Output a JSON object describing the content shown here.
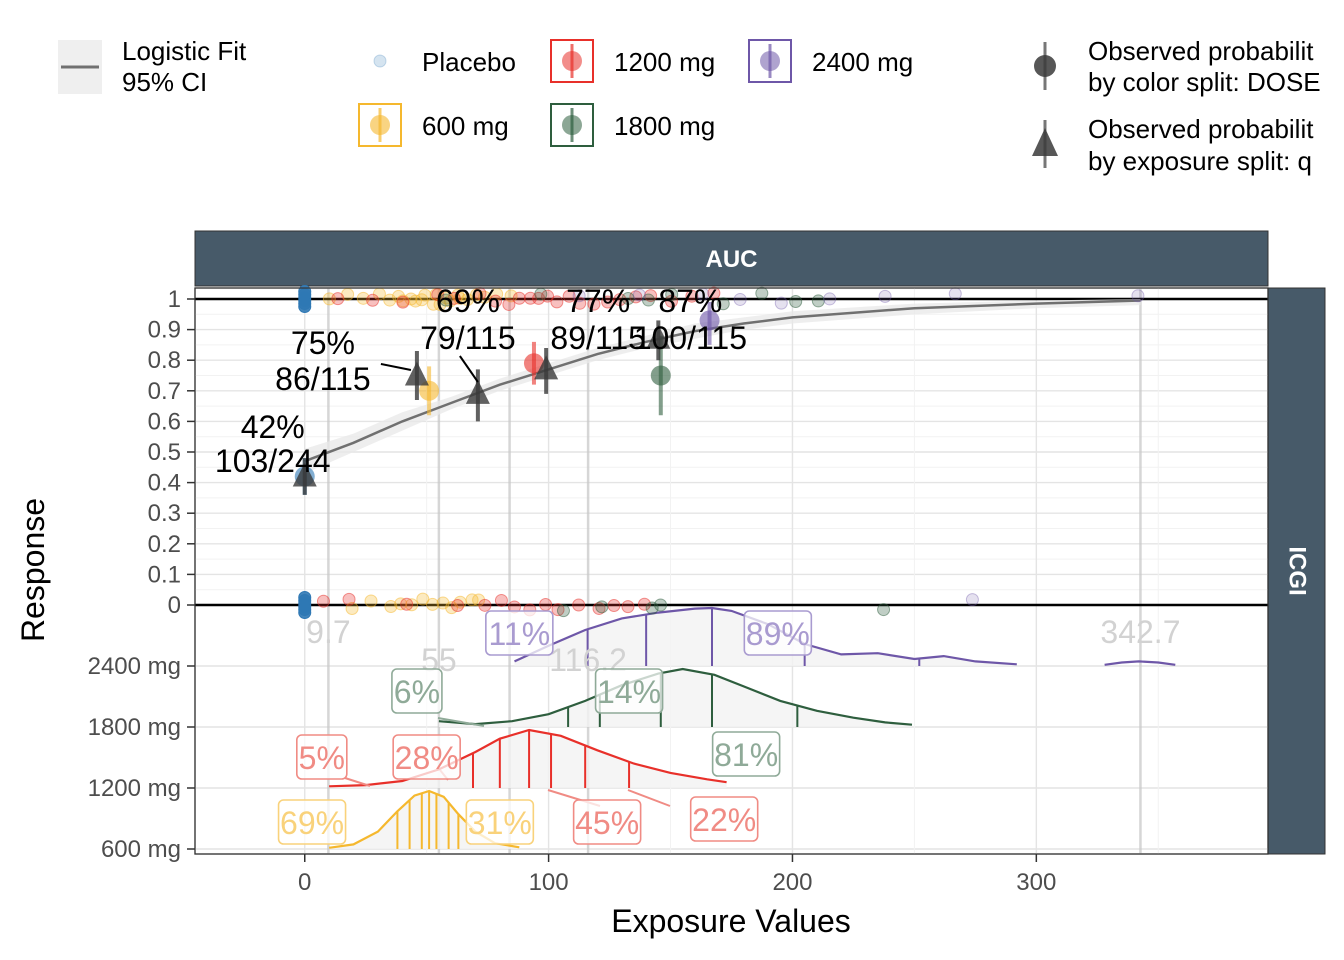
{
  "legend": {
    "fit": {
      "line_label": "Logistic Fit",
      "ci_label": "95% CI"
    },
    "doses": [
      {
        "label": "Placebo",
        "color": "#2f78b4"
      },
      {
        "label": "1200 mg",
        "color": "#e8302a"
      },
      {
        "label": "2400 mg",
        "color": "#6e57a8"
      },
      {
        "label": "600 mg",
        "color": "#f5b82e"
      },
      {
        "label": "1800 mg",
        "color": "#2e5e3e"
      }
    ],
    "observed": [
      {
        "line1": "Observed probabilit",
        "line2": "by color split: DOSE",
        "shape": "circle"
      },
      {
        "line1": "Observed probabilit",
        "line2": "by exposure split: q",
        "shape": "triangle"
      }
    ]
  },
  "strip_top": "AUC",
  "strip_right": "ICGI",
  "chart_data": {
    "type": "scatter",
    "xlabel": "Exposure Values",
    "ylabel": "Response",
    "xlim": [
      -45,
      395
    ],
    "x_ticks": [
      0,
      100,
      200,
      300
    ],
    "x_tick_labels": [
      "0",
      "100",
      "200",
      "300"
    ],
    "y_ticks": [
      0,
      0.1,
      0.2,
      0.3,
      0.4,
      0.5,
      0.6,
      0.7,
      0.8,
      0.9,
      1
    ],
    "y_tick_labels": [
      "0",
      "0.1",
      "0.2",
      "0.3",
      "0.4",
      "0.5",
      "0.6",
      "0.7",
      "0.8",
      "0.9",
      "1"
    ],
    "dose_rows": [
      "2400 mg",
      "1800 mg",
      "1200 mg",
      "600 mg"
    ],
    "logistic_fit": {
      "x": [
        0,
        20,
        40,
        60,
        80,
        100,
        120,
        140,
        160,
        180,
        200,
        250,
        300,
        342.7
      ],
      "y": [
        0.47,
        0.53,
        0.6,
        0.66,
        0.72,
        0.77,
        0.82,
        0.86,
        0.895,
        0.92,
        0.94,
        0.97,
        0.985,
        0.995
      ],
      "ci_low": [
        0.43,
        0.5,
        0.57,
        0.64,
        0.7,
        0.75,
        0.8,
        0.84,
        0.87,
        0.9,
        0.92,
        0.95,
        0.97,
        0.98
      ],
      "ci_high": [
        0.51,
        0.56,
        0.63,
        0.68,
        0.74,
        0.79,
        0.84,
        0.88,
        0.92,
        0.94,
        0.96,
        0.985,
        0.995,
        1.0
      ]
    },
    "exposure_quartile_points": [
      {
        "x": 0,
        "y": 0.42,
        "lo": 0.36,
        "hi": 0.48,
        "pct": "42%",
        "frac": "103/244"
      },
      {
        "x": 46,
        "y": 0.75,
        "lo": 0.67,
        "hi": 0.83,
        "pct": "75%",
        "frac": "86/115"
      },
      {
        "x": 71,
        "y": 0.69,
        "lo": 0.6,
        "hi": 0.77,
        "pct": "69%",
        "frac": "79/115"
      },
      {
        "x": 99,
        "y": 0.77,
        "lo": 0.69,
        "hi": 0.84,
        "pct": "77%",
        "frac": "89/115"
      },
      {
        "x": 145,
        "y": 0.87,
        "lo": 0.8,
        "hi": 0.93,
        "pct": "87%",
        "frac": "100/115"
      }
    ],
    "dose_group_points": [
      {
        "dose": "Placebo",
        "x": 0,
        "y": 0.42,
        "lo": 0.36,
        "hi": 0.48
      },
      {
        "dose": "600 mg",
        "x": 51,
        "y": 0.7,
        "lo": 0.62,
        "hi": 0.78
      },
      {
        "dose": "1200 mg",
        "x": 94,
        "y": 0.79,
        "lo": 0.72,
        "hi": 0.86
      },
      {
        "dose": "1800 mg",
        "x": 146,
        "y": 0.75,
        "lo": 0.62,
        "hi": 0.88
      },
      {
        "dose": "2400 mg",
        "x": 166,
        "y": 0.93,
        "lo": 0.85,
        "hi": 0.99
      }
    ],
    "quartile_cut_labels": [
      {
        "x": 9.7,
        "label": "9.7"
      },
      {
        "x": 55,
        "label": "55"
      },
      {
        "x": 116.2,
        "label": "116.2"
      },
      {
        "x": 342.7,
        "label": "342.7"
      }
    ],
    "density_curves": [
      {
        "dose": "2400 mg",
        "color": "#6e57a8",
        "x": [
          86,
          100,
          115,
          130,
          145,
          160,
          167,
          175,
          190,
          205,
          220,
          235,
          250,
          262,
          275,
          292
        ],
        "h": [
          0.08,
          0.35,
          0.62,
          0.82,
          0.92,
          0.99,
          1.0,
          0.95,
          0.72,
          0.38,
          0.2,
          0.22,
          0.12,
          0.17,
          0.08,
          0.03
        ],
        "ticks": [
          116,
          140,
          167,
          205,
          252
        ],
        "extra": {
          "x": [
            328,
            335,
            342,
            350,
            357
          ],
          "h": [
            0.02,
            0.06,
            0.08,
            0.06,
            0.02
          ]
        }
      },
      {
        "dose": "1800 mg",
        "color": "#2e5e3e",
        "x": [
          55,
          70,
          85,
          100,
          115,
          130,
          145,
          155,
          168,
          180,
          195,
          210,
          225,
          238,
          249
        ],
        "h": [
          0.1,
          0.05,
          0.1,
          0.22,
          0.45,
          0.72,
          0.92,
          1.0,
          0.9,
          0.7,
          0.45,
          0.28,
          0.16,
          0.08,
          0.04
        ],
        "ticks": [
          108,
          121,
          146,
          167,
          202
        ]
      },
      {
        "dose": "1200 mg",
        "color": "#e8302a",
        "x": [
          10,
          25,
          40,
          55,
          70,
          80,
          92,
          105,
          120,
          135,
          150,
          165,
          173
        ],
        "h": [
          0.03,
          0.05,
          0.12,
          0.32,
          0.62,
          0.85,
          1.0,
          0.9,
          0.65,
          0.42,
          0.26,
          0.15,
          0.1
        ],
        "ticks": [
          69,
          80,
          92,
          101,
          115,
          133
        ]
      },
      {
        "dose": "600 mg",
        "color": "#f5b82e",
        "x": [
          10,
          20,
          30,
          38,
          45,
          51,
          57,
          63,
          70,
          78,
          88
        ],
        "h": [
          0.02,
          0.08,
          0.3,
          0.65,
          0.92,
          1.0,
          0.9,
          0.6,
          0.3,
          0.1,
          0.03
        ],
        "ticks": [
          38,
          43,
          48,
          51,
          54,
          59,
          63
        ]
      }
    ],
    "density_percent_labels": [
      {
        "dose": "2400 mg",
        "x": 88,
        "text": "11%",
        "color": "#a99bd0"
      },
      {
        "dose": "2400 mg",
        "x": 194,
        "text": "89%",
        "color": "#a99bd0"
      },
      {
        "dose": "1800 mg",
        "x": 46,
        "text": "6%",
        "color": "#8faa98"
      },
      {
        "dose": "1800 mg",
        "x": 133,
        "text": "14%",
        "color": "#8faa98"
      },
      {
        "dose": "1800 mg",
        "x": 181,
        "text": "81%",
        "color": "#8faa98"
      },
      {
        "dose": "1200 mg",
        "x": 7,
        "text": "5%",
        "color": "#f08b84"
      },
      {
        "dose": "1200 mg",
        "x": 50,
        "text": "28%",
        "color": "#f08b84"
      },
      {
        "dose": "1200 mg",
        "x": 124,
        "text": "45%",
        "color": "#f08b84"
      },
      {
        "dose": "1200 mg",
        "x": 172,
        "text": "22%",
        "color": "#f08b84"
      },
      {
        "dose": "600 mg",
        "x": 3,
        "text": "69%",
        "color": "#f9d27b"
      },
      {
        "dose": "600 mg",
        "x": 80,
        "text": "31%",
        "color": "#f9d27b"
      }
    ],
    "vertical_ref_lines": [
      9.7,
      55,
      84,
      116.2,
      342.7
    ],
    "jitter_responders": [
      {
        "dose": "Placebo",
        "x": [
          0,
          0,
          0,
          0,
          0,
          0
        ]
      },
      {
        "dose": "600 mg",
        "x": [
          10,
          18,
          24,
          30,
          35,
          38,
          41,
          44,
          46,
          48,
          50,
          52,
          54,
          56,
          58,
          60,
          62,
          64,
          67,
          70,
          74,
          78,
          84
        ]
      },
      {
        "dose": "1200 mg",
        "x": [
          14,
          28,
          40,
          55,
          62,
          72,
          78,
          84,
          88,
          92,
          96,
          100,
          104,
          108,
          112,
          118,
          124,
          130,
          136,
          142,
          150,
          158,
          168
        ]
      },
      {
        "dose": "1800 mg",
        "x": [
          58,
          96,
          132,
          141,
          150,
          172,
          188,
          201,
          210
        ]
      },
      {
        "dose": "2400 mg",
        "x": [
          112,
          138,
          164,
          178,
          196,
          216,
          238,
          267,
          342
        ]
      }
    ],
    "jitter_nonresponders": [
      {
        "dose": "Placebo",
        "x": [
          0,
          0,
          0,
          0,
          0,
          0
        ]
      },
      {
        "dose": "600 mg",
        "x": [
          20,
          28,
          36,
          40,
          44,
          48,
          52,
          56,
          60,
          64,
          68,
          72
        ]
      },
      {
        "dose": "1200 mg",
        "x": [
          8,
          18,
          42,
          62,
          74,
          80,
          86,
          92,
          98,
          104,
          112,
          120,
          126,
          132,
          140
        ]
      },
      {
        "dose": "1800 mg",
        "x": [
          106,
          122,
          142,
          146,
          237
        ]
      },
      {
        "dose": "2400 mg",
        "x": [
          274
        ]
      }
    ]
  }
}
